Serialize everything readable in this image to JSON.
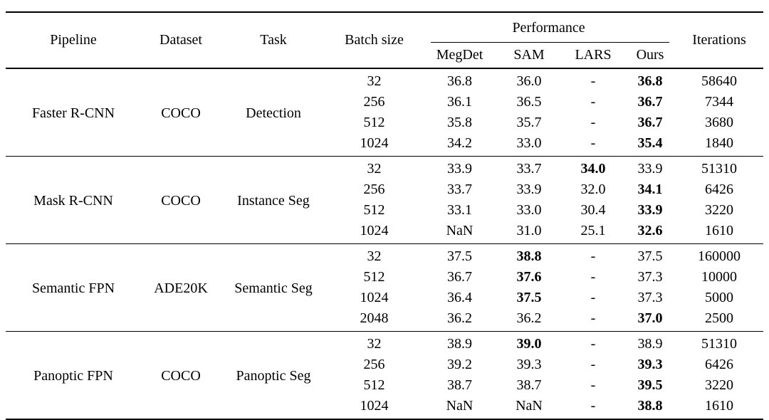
{
  "table": {
    "columns": {
      "pipeline": "Pipeline",
      "dataset": "Dataset",
      "task": "Task",
      "batch_size": "Batch size",
      "performance": "Performance",
      "megdet": "MegDet",
      "sam": "SAM",
      "lars": "LARS",
      "ours": "Ours",
      "iterations": "Iterations"
    },
    "blocks": [
      {
        "pipeline": "Faster R-CNN",
        "dataset": "COCO",
        "task": "Detection",
        "rows": [
          {
            "batch": "32",
            "megdet": "36.8",
            "sam": "36.0",
            "lars": "-",
            "ours": "36.8",
            "iters": "58640"
          },
          {
            "batch": "256",
            "megdet": "36.1",
            "sam": "36.5",
            "lars": "-",
            "ours": "36.7",
            "iters": "7344"
          },
          {
            "batch": "512",
            "megdet": "35.8",
            "sam": "35.7",
            "lars": "-",
            "ours": "36.7",
            "iters": "3680"
          },
          {
            "batch": "1024",
            "megdet": "34.2",
            "sam": "33.0",
            "lars": "-",
            "ours": "35.4",
            "iters": "1840"
          }
        ]
      },
      {
        "pipeline": "Mask R-CNN",
        "dataset": "COCO",
        "task": "Instance Seg",
        "rows": [
          {
            "batch": "32",
            "megdet": "33.9",
            "sam": "33.7",
            "lars": "34.0",
            "ours": "33.9",
            "iters": "51310"
          },
          {
            "batch": "256",
            "megdet": "33.7",
            "sam": "33.9",
            "lars": "32.0",
            "ours": "34.1",
            "iters": "6426"
          },
          {
            "batch": "512",
            "megdet": "33.1",
            "sam": "33.0",
            "lars": "30.4",
            "ours": "33.9",
            "iters": "3220"
          },
          {
            "batch": "1024",
            "megdet": "NaN",
            "sam": "31.0",
            "lars": "25.1",
            "ours": "32.6",
            "iters": "1610"
          }
        ]
      },
      {
        "pipeline": "Semantic FPN",
        "dataset": "ADE20K",
        "task": "Semantic Seg",
        "rows": [
          {
            "batch": "32",
            "megdet": "37.5",
            "sam": "38.8",
            "lars": "-",
            "ours": "37.5",
            "iters": "160000"
          },
          {
            "batch": "512",
            "megdet": "36.7",
            "sam": "37.6",
            "lars": "-",
            "ours": "37.3",
            "iters": "10000"
          },
          {
            "batch": "1024",
            "megdet": "36.4",
            "sam": "37.5",
            "lars": "-",
            "ours": "37.3",
            "iters": "5000"
          },
          {
            "batch": "2048",
            "megdet": "36.2",
            "sam": "36.2",
            "lars": "-",
            "ours": "37.0",
            "iters": "2500"
          }
        ]
      },
      {
        "pipeline": "Panoptic FPN",
        "dataset": "COCO",
        "task": "Panoptic Seg",
        "rows": [
          {
            "batch": "32",
            "megdet": "38.9",
            "sam": "39.0",
            "lars": "-",
            "ours": "38.9",
            "iters": "51310"
          },
          {
            "batch": "256",
            "megdet": "39.2",
            "sam": "39.3",
            "lars": "-",
            "ours": "39.3",
            "iters": "6426"
          },
          {
            "batch": "512",
            "megdet": "38.7",
            "sam": "38.7",
            "lars": "-",
            "ours": "39.5",
            "iters": "3220"
          },
          {
            "batch": "1024",
            "megdet": "NaN",
            "sam": "NaN",
            "lars": "-",
            "ours": "38.8",
            "iters": "1610"
          }
        ]
      }
    ]
  }
}
